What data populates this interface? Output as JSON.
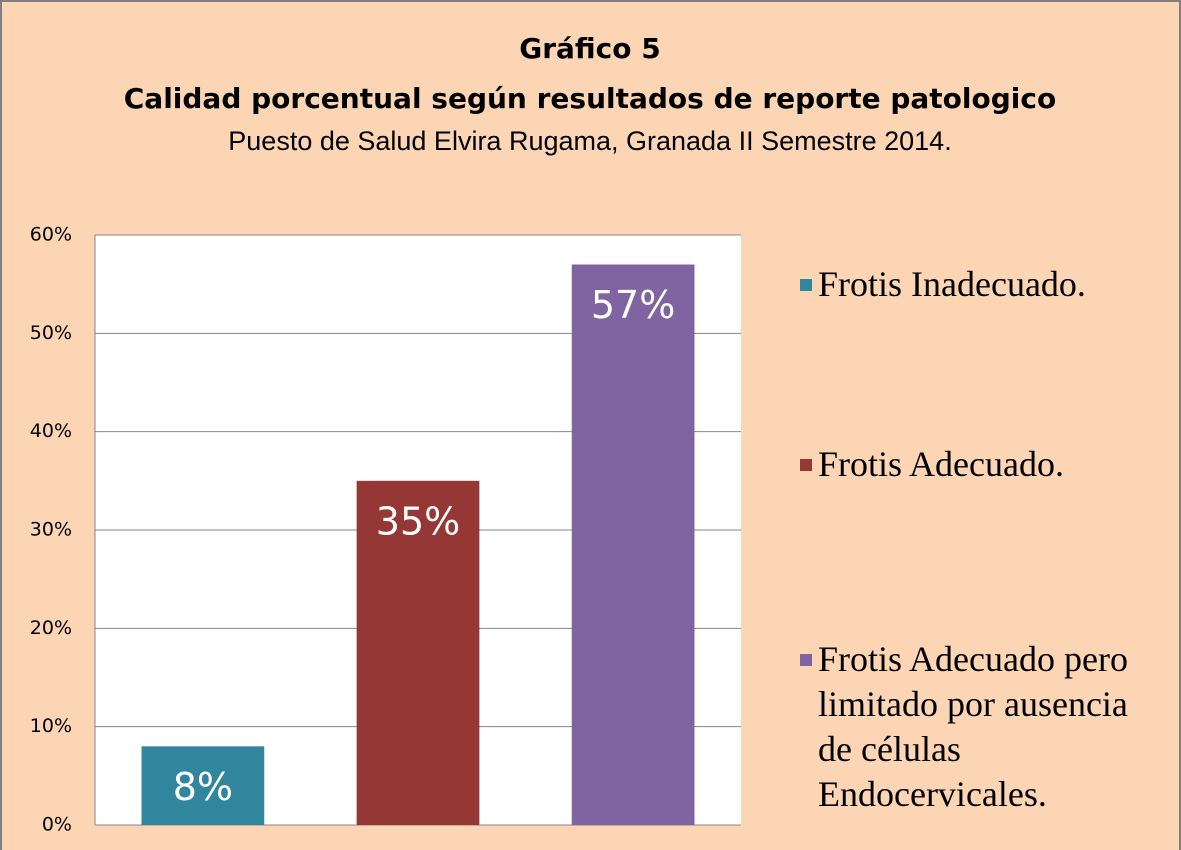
{
  "chart_data": {
    "type": "bar",
    "title": [
      "Gráfico 5",
      "Calidad porcentual según resultados de reporte patologico"
    ],
    "subtitle": "Puesto de Salud Elvira Rugama, Granada II Semestre 2014.",
    "categories": [
      null
    ],
    "series": [
      {
        "name": "Frotis Inadecuado.",
        "color": "#31859c",
        "values": [
          8
        ],
        "value_labels": [
          "8%"
        ]
      },
      {
        "name": "Frotis Adecuado.",
        "color": "#953735",
        "values": [
          35
        ],
        "value_labels": [
          "35%"
        ]
      },
      {
        "name": "Frotis Adecuado pero limitado por ausencia de células Endocervicales.",
        "color": "#8064a2",
        "values": [
          57
        ],
        "value_labels": [
          "57%"
        ]
      }
    ],
    "ylim": [
      0,
      60
    ],
    "yticks": [
      {
        "value": 0,
        "label": "0%"
      },
      {
        "value": 10,
        "label": "10%"
      },
      {
        "value": 20,
        "label": "20%"
      },
      {
        "value": 30,
        "label": "30%"
      },
      {
        "value": 40,
        "label": "40%"
      },
      {
        "value": 50,
        "label": "50%"
      },
      {
        "value": 60,
        "label": "60%"
      }
    ],
    "grid": true,
    "legend": "right"
  }
}
